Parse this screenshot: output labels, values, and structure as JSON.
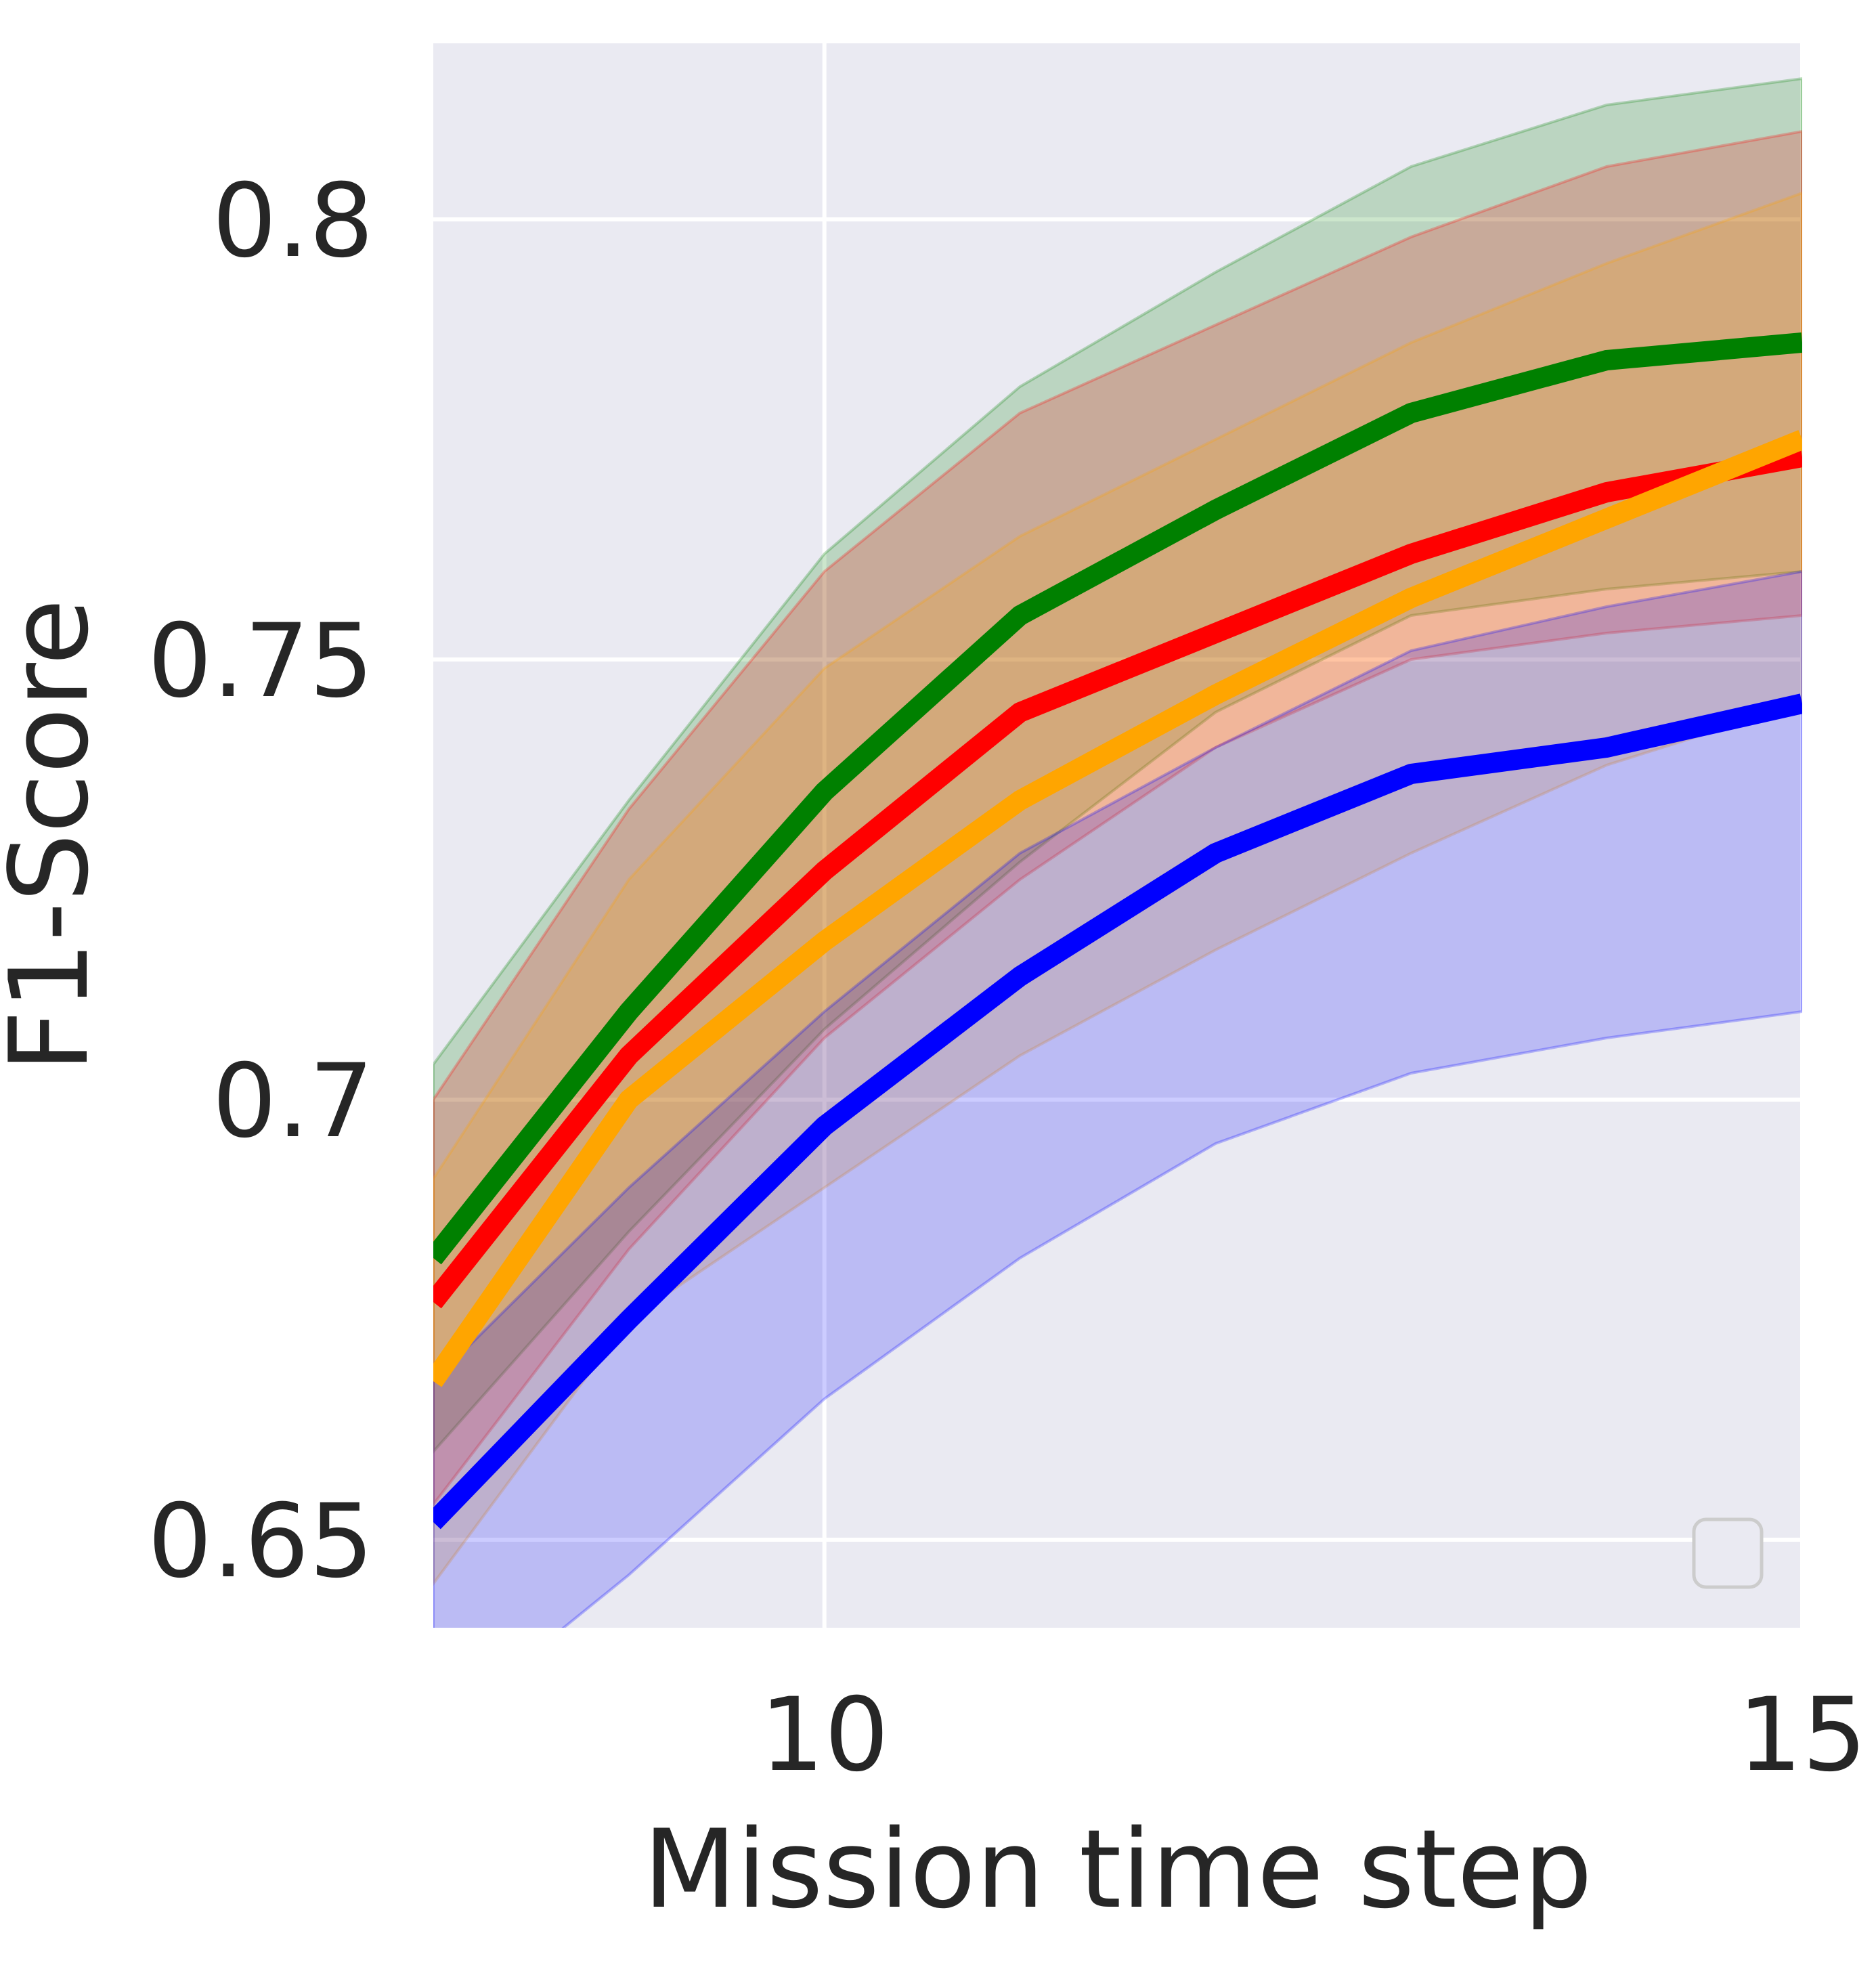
{
  "chart_data": {
    "type": "line",
    "title": "",
    "xlabel": "Mission time step",
    "ylabel": "F1-Score",
    "xlim": [
      8,
      15
    ],
    "ylim": [
      0.64,
      0.82
    ],
    "xticks": [
      10,
      15
    ],
    "xtick_labels": [
      "10",
      "15"
    ],
    "yticks": [
      0.65,
      0.7,
      0.75,
      0.8
    ],
    "ytick_labels": [
      "0.65",
      "0.7",
      "0.75",
      "0.8"
    ],
    "grid": true,
    "legend": {
      "position": "bottom-right",
      "entries": []
    },
    "x": [
      8,
      9,
      10,
      11,
      12,
      13,
      14,
      15
    ],
    "series": [
      {
        "color": "#008000",
        "values": [
          0.682,
          0.71,
          0.735,
          0.755,
          0.767,
          0.778,
          0.784,
          0.786
        ],
        "lower": [
          0.66,
          0.685,
          0.708,
          0.727,
          0.744,
          0.755,
          0.758,
          0.76
        ],
        "upper": [
          0.704,
          0.734,
          0.762,
          0.781,
          0.794,
          0.806,
          0.813,
          0.816
        ]
      },
      {
        "color": "#ff0000",
        "values": [
          0.677,
          0.705,
          0.726,
          0.744,
          0.753,
          0.762,
          0.769,
          0.773
        ],
        "lower": [
          0.654,
          0.683,
          0.707,
          0.725,
          0.74,
          0.75,
          0.753,
          0.755
        ],
        "upper": [
          0.7,
          0.733,
          0.76,
          0.778,
          0.788,
          0.798,
          0.806,
          0.81
        ]
      },
      {
        "color": "#ffa500",
        "values": [
          0.668,
          0.7,
          0.718,
          0.734,
          0.746,
          0.757,
          0.766,
          0.775
        ],
        "lower": [
          0.645,
          0.675,
          0.69,
          0.705,
          0.717,
          0.728,
          0.738,
          0.745
        ],
        "upper": [
          0.691,
          0.725,
          0.749,
          0.764,
          0.775,
          0.786,
          0.795,
          0.803
        ]
      },
      {
        "color": "#0000ff",
        "values": [
          0.652,
          0.675,
          0.697,
          0.714,
          0.728,
          0.737,
          0.74,
          0.745
        ],
        "lower": [
          0.628,
          0.646,
          0.666,
          0.682,
          0.695,
          0.703,
          0.707,
          0.71
        ],
        "upper": [
          0.668,
          0.69,
          0.71,
          0.728,
          0.74,
          0.751,
          0.756,
          0.76
        ]
      }
    ]
  }
}
